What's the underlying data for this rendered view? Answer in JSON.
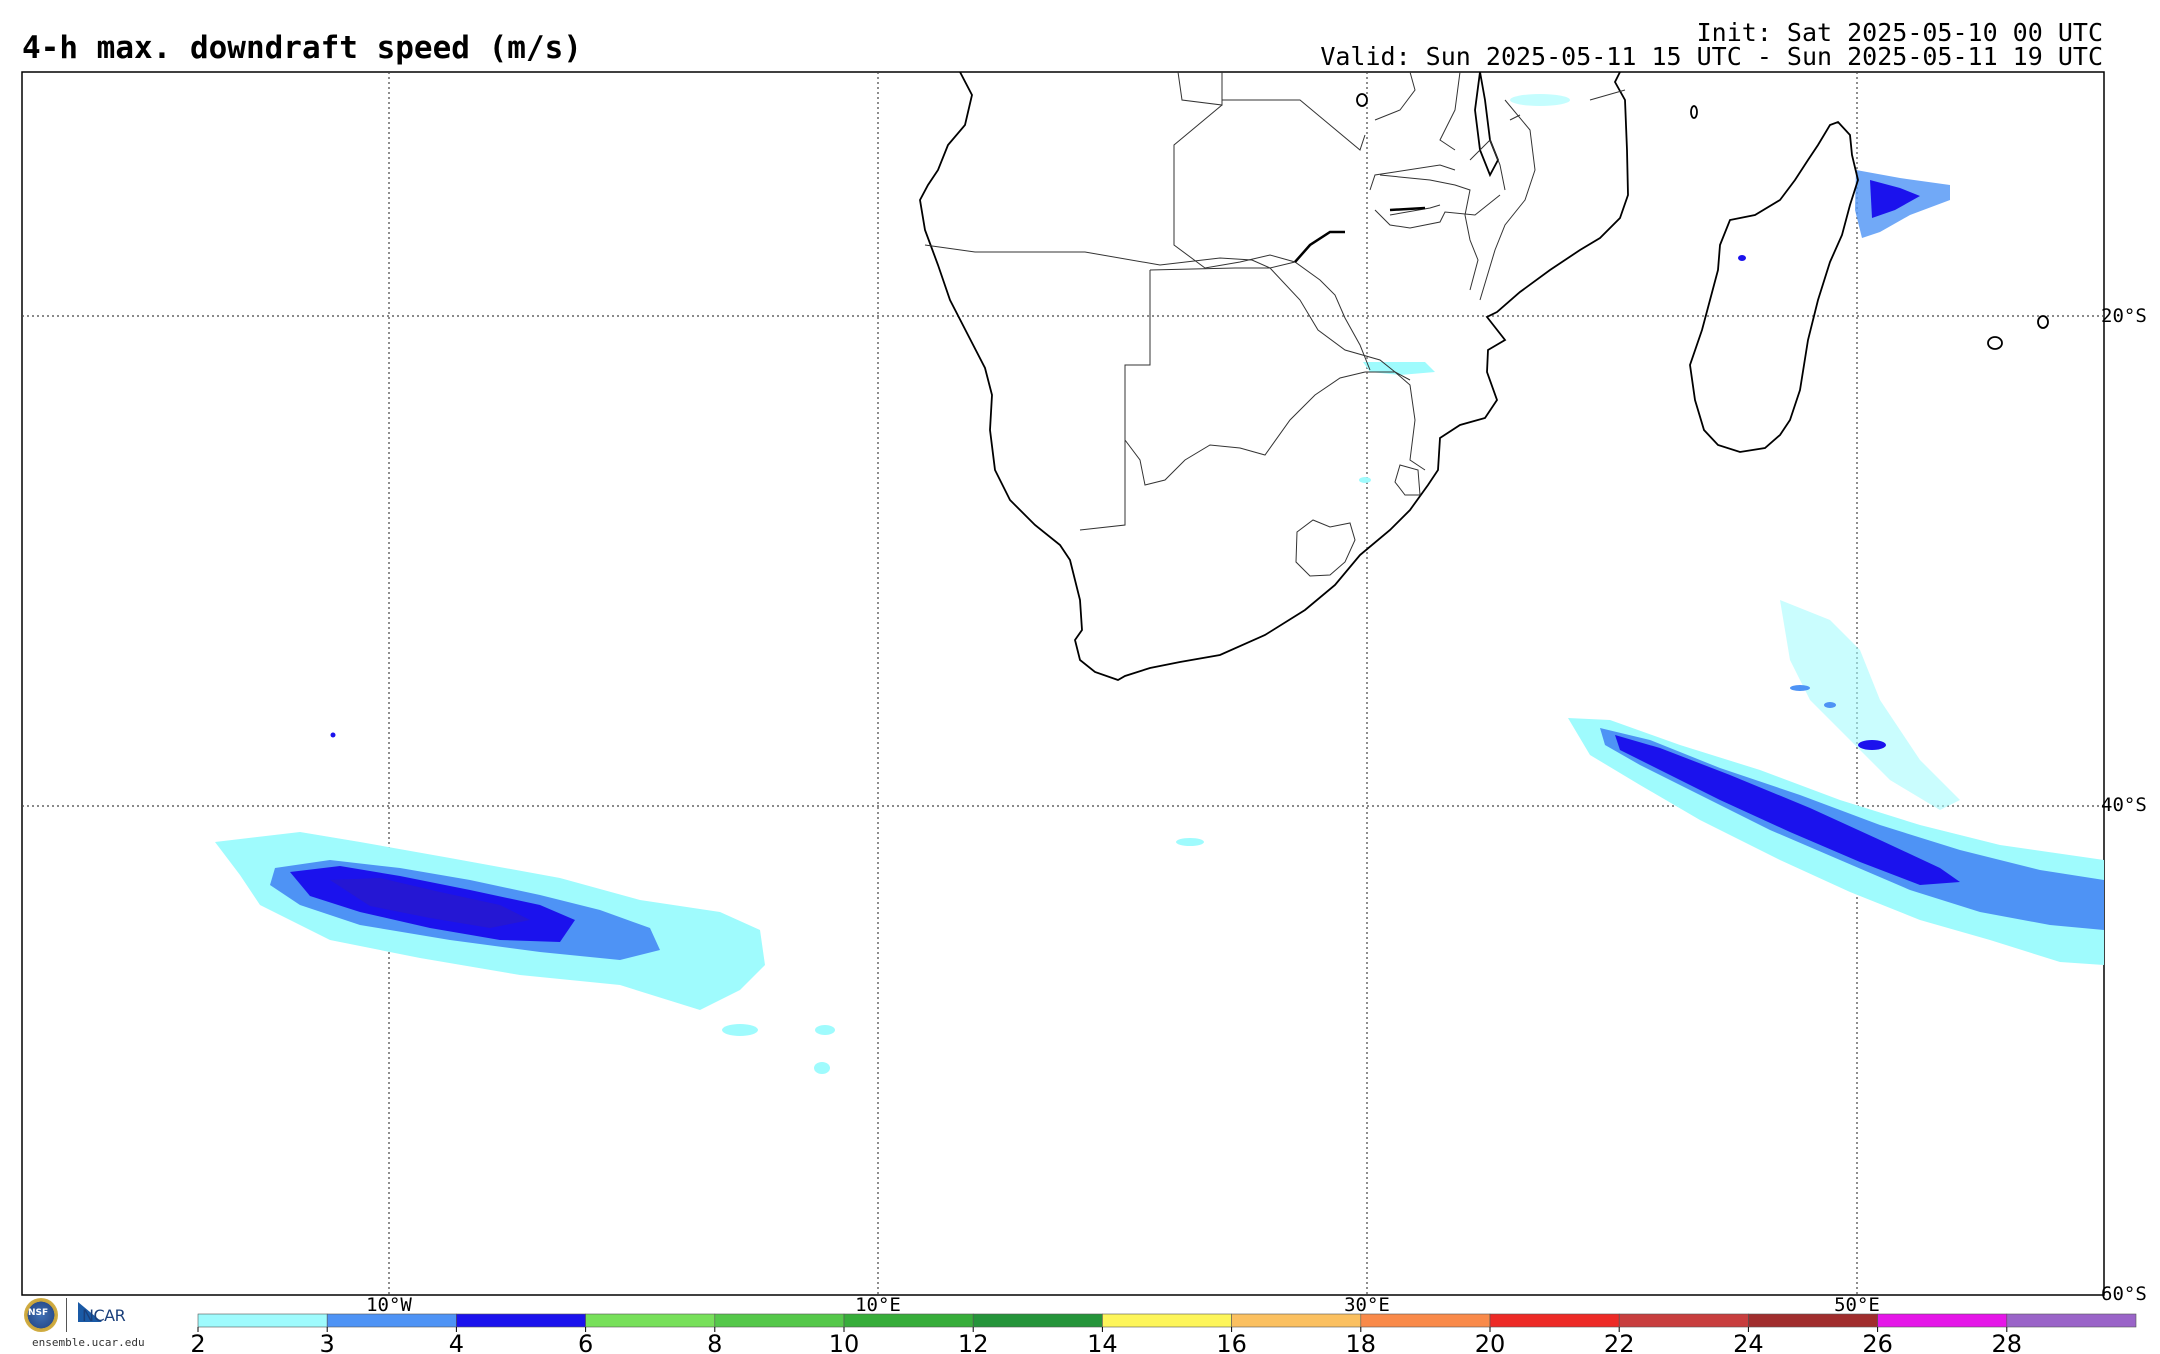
{
  "header": {
    "title": "4-h max. downdraft speed (m/s)",
    "init": "Init: Sat 2025-05-10 00 UTC",
    "valid": "Valid: Sun 2025-05-11 15 UTC - Sun 2025-05-11 19 UTC"
  },
  "map": {
    "lon_labels": [
      "10°W",
      "10°E",
      "30°E",
      "50°E"
    ],
    "lat_labels": [
      "20°S",
      "40°S",
      "60°S"
    ]
  },
  "colorbar": {
    "ticks": [
      "2",
      "3",
      "4",
      "6",
      "8",
      "10",
      "12",
      "14",
      "16",
      "18",
      "20",
      "22",
      "24",
      "26",
      "28"
    ],
    "colors": [
      "#9ffbfd",
      "#4e93f5",
      "#1b12ed",
      "#77e05a",
      "#55c84a",
      "#37ad3a",
      "#25943a",
      "#fdf55a",
      "#fbc060",
      "#f98a4a",
      "#ed2a26",
      "#c83e3e",
      "#a02d2d",
      "#e516e8",
      "#9a64c8"
    ]
  },
  "footer": {
    "nsf": "NSF",
    "ncar": "NCAR",
    "website": "ensemble.ucar.edu"
  }
}
